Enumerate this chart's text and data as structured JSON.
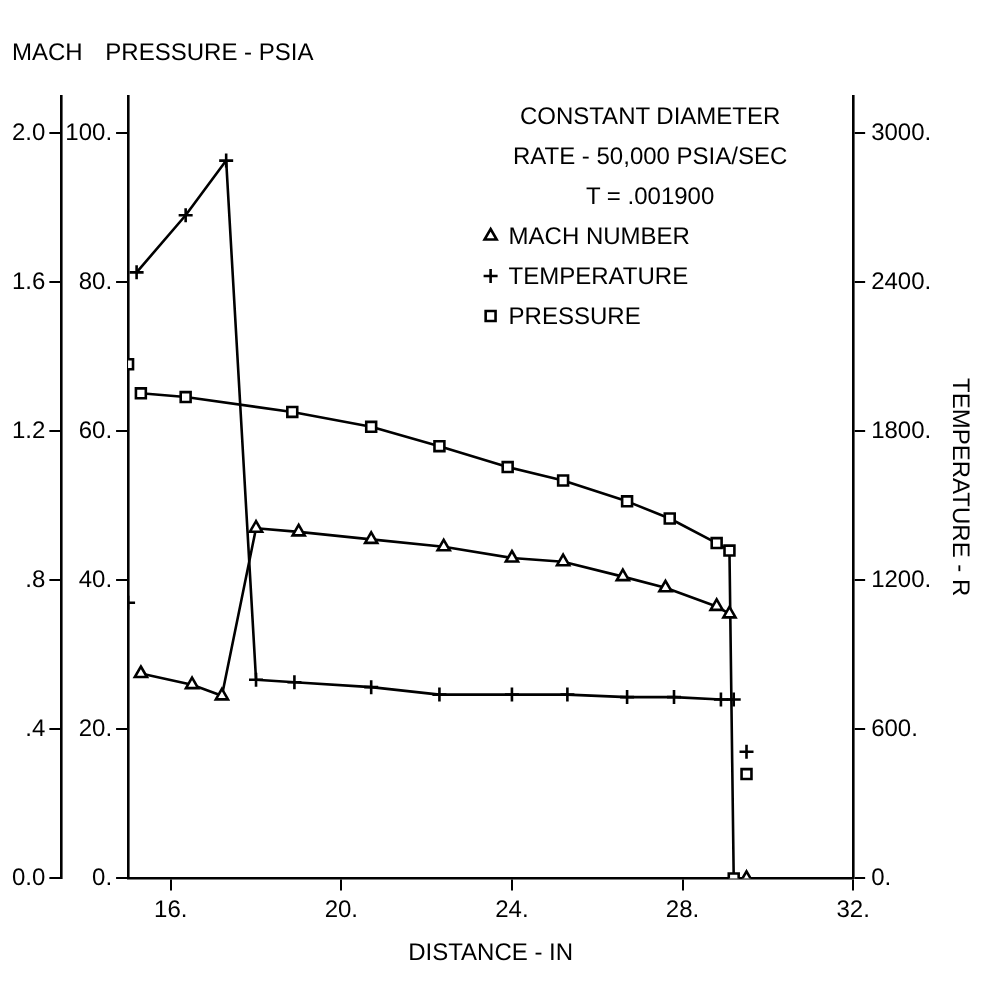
{
  "chart_data": {
    "type": "line",
    "xlabel": "DISTANCE - IN",
    "ylabel": "PRESSURE - PSIA",
    "y2label": "TEMPERATURE - R",
    "y3label": "MACH",
    "annotations": [
      "CONSTANT DIAMETER",
      "RATE - 50,000 PSIA/SEC",
      "T = .001900"
    ],
    "xlim": [
      15,
      32
    ],
    "xticks": [
      {
        "value": 16,
        "label": "16."
      },
      {
        "value": 20,
        "label": "20."
      },
      {
        "value": 24,
        "label": "24."
      },
      {
        "value": 28,
        "label": "28."
      },
      {
        "value": 32,
        "label": "32."
      }
    ],
    "ylim": [
      0,
      105
    ],
    "yticks": [
      {
        "value": 0,
        "label": "0."
      },
      {
        "value": 20,
        "label": "20."
      },
      {
        "value": 40,
        "label": "40."
      },
      {
        "value": 60,
        "label": "60."
      },
      {
        "value": 80,
        "label": "80."
      },
      {
        "value": 100,
        "label": "100."
      }
    ],
    "y2lim": [
      0,
      3150
    ],
    "y2ticks": [
      {
        "value": 0,
        "label": "0."
      },
      {
        "value": 600,
        "label": "600."
      },
      {
        "value": 1200,
        "label": "1200."
      },
      {
        "value": 1800,
        "label": "1800."
      },
      {
        "value": 2400,
        "label": "2400."
      },
      {
        "value": 3000,
        "label": "3000."
      }
    ],
    "y3lim": [
      0,
      2.1
    ],
    "y3ticks": [
      {
        "value": 0,
        "label": "0.0"
      },
      {
        "value": 0.4,
        "label": ".4"
      },
      {
        "value": 0.8,
        "label": ".8"
      },
      {
        "value": 1.2,
        "label": "1.2"
      },
      {
        "value": 1.6,
        "label": "1.6"
      },
      {
        "value": 2,
        "label": "2.0"
      }
    ],
    "legend": "top right",
    "series": [
      {
        "name": "MACH NUMBER",
        "axis": "y3",
        "marker": "triangle",
        "color": "#000000",
        "x": [
          15.3,
          16.5,
          17.2,
          18.0,
          19.0,
          20.7,
          22.4,
          24.0,
          25.2,
          26.6,
          27.6,
          28.8,
          29.1
        ],
        "values": [
          0.55,
          0.52,
          0.49,
          0.94,
          0.93,
          0.91,
          0.89,
          0.86,
          0.85,
          0.81,
          0.78,
          0.73,
          0.71
        ]
      },
      {
        "name": "TEMPERATURE",
        "axis": "y2",
        "marker": "cross",
        "color": "#000000",
        "x": [
          15.2,
          16.35,
          17.3,
          18.0,
          18.9,
          20.7,
          22.3,
          24.0,
          25.3,
          26.7,
          27.8,
          28.9,
          29.2
        ],
        "values": [
          2440,
          2670,
          2890,
          800,
          790,
          770,
          740,
          740,
          740,
          730,
          730,
          720,
          720
        ]
      },
      {
        "name": "PRESSURE",
        "axis": "y",
        "marker": "square",
        "color": "#000000",
        "x": [
          15.3,
          16.35,
          18.85,
          20.7,
          22.3,
          23.9,
          25.2,
          26.7,
          27.7,
          28.8,
          29.1,
          29.2
        ],
        "values": [
          65.1,
          64.6,
          62.6,
          60.6,
          58,
          55.2,
          53.4,
          50.6,
          48.3,
          45,
          44,
          0
        ]
      },
      {
        "type": "scatter",
        "axis": "y3",
        "marker": "triangle",
        "color": "#000000",
        "x": [
          29.5
        ],
        "values": [
          0
        ]
      },
      {
        "type": "scatter",
        "axis": "y2",
        "marker": "cross",
        "color": "#000000",
        "x": [
          15.0,
          29.5
        ],
        "values": [
          1110,
          510
        ]
      },
      {
        "type": "scatter",
        "axis": "y",
        "marker": "square",
        "color": "#000000",
        "x": [
          15.0,
          29.5
        ],
        "values": [
          69,
          14
        ]
      }
    ]
  }
}
